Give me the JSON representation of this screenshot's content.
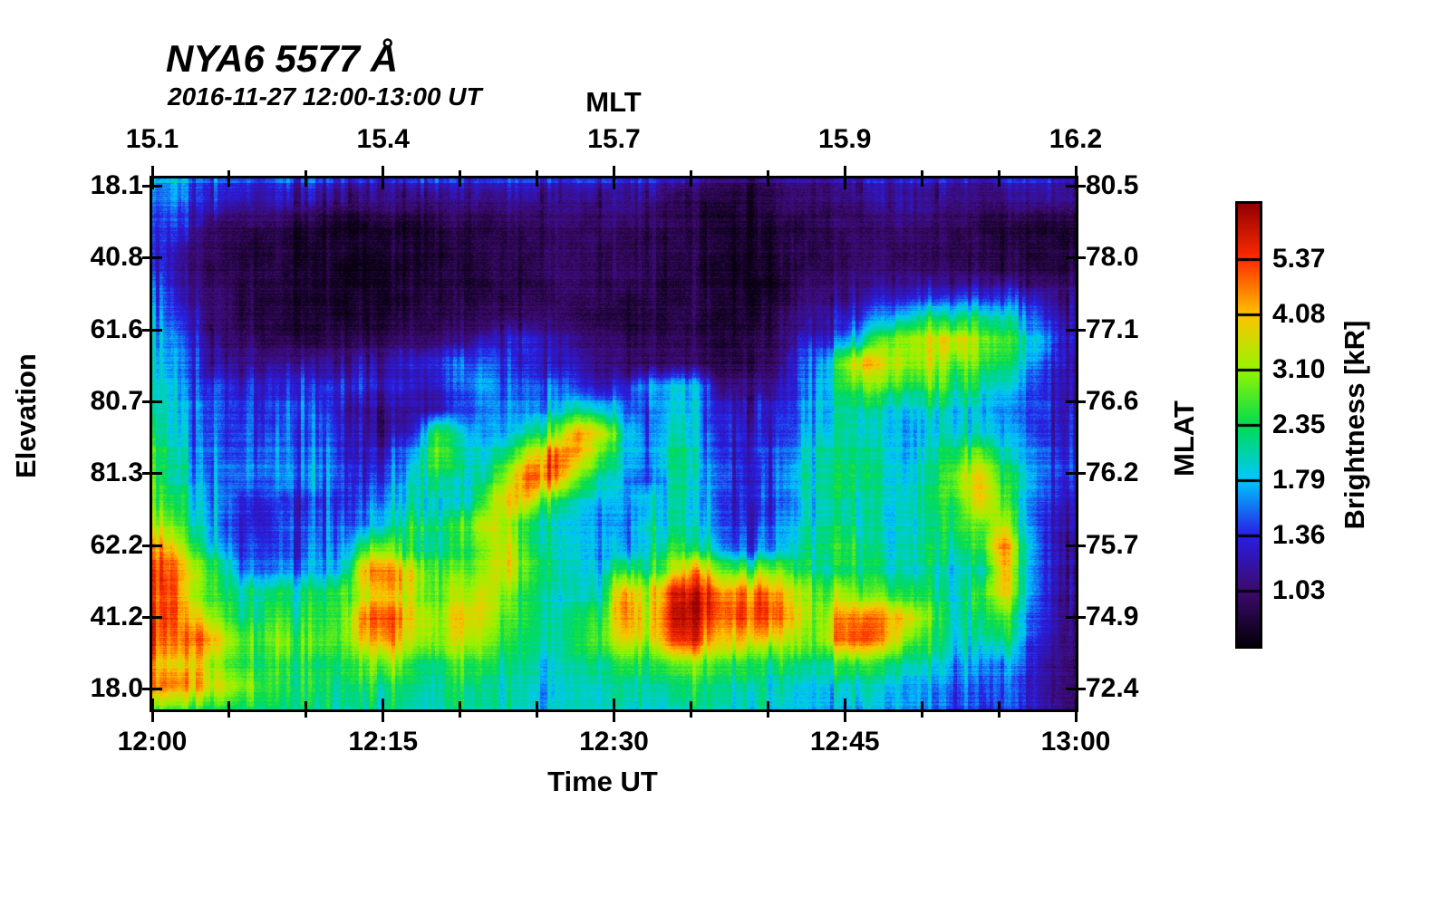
{
  "chart_data": {
    "type": "heatmap",
    "title": "NYA6 5577 Å",
    "subtitle": "2016-11-27 12:00-13:00 UT",
    "xlabel_bottom": "Time UT",
    "xlabel_top": "MLT",
    "ylabel_left": "Elevation",
    "ylabel_right": "MLAT",
    "colorbar_label": "Brightness [kR]",
    "x_ticks_bottom": [
      "12:00",
      "12:15",
      "12:30",
      "12:45",
      "13:00"
    ],
    "x_ticks_top": [
      "15.1",
      "15.4",
      "15.7",
      "15.9",
      "16.2"
    ],
    "y_ticks_left": [
      "18.1",
      "40.8",
      "61.6",
      "80.7",
      "81.3",
      "62.2",
      "41.2",
      "18.0"
    ],
    "y_ticks_right": [
      "80.5",
      "78.0",
      "77.1",
      "76.6",
      "76.2",
      "75.7",
      "74.9",
      "72.4"
    ],
    "colorbar_ticks": [
      "5.37",
      "4.08",
      "3.10",
      "2.35",
      "1.79",
      "1.36",
      "1.03"
    ],
    "scale": "log",
    "x_range_minutes": [
      0,
      60
    ],
    "grid_on": false,
    "colormap_stops": [
      [
        0,
        5,
        0,
        10
      ],
      [
        12.5,
        62,
        10,
        112
      ],
      [
        25,
        40,
        30,
        230
      ],
      [
        37.5,
        0,
        200,
        255
      ],
      [
        50,
        0,
        220,
        80
      ],
      [
        62.5,
        150,
        245,
        0
      ],
      [
        75,
        255,
        195,
        0
      ],
      [
        87.5,
        255,
        45,
        0
      ],
      [
        100,
        150,
        0,
        0
      ]
    ],
    "grid": {
      "cols": 40,
      "rows": 24,
      "comment_scale": "values are percent position on the log color scale: 0=darkest (~0.78 kR), 50=2.35 kR, 100=brightest (~7.1 kR)",
      "values_t100": [
        [
          30,
          32,
          28,
          26,
          25,
          24,
          24,
          25,
          24,
          22,
          22,
          23,
          24,
          22,
          22,
          23,
          22,
          21,
          22,
          23,
          22,
          20,
          18,
          16,
          10,
          9,
          10,
          13,
          14,
          15,
          17,
          20,
          22,
          18,
          17,
          15,
          20,
          22,
          20,
          18
        ],
        [
          30,
          28,
          24,
          21,
          19,
          18,
          17,
          17,
          16,
          15,
          14,
          13,
          13,
          14,
          14,
          14,
          15,
          15,
          15,
          16,
          15,
          14,
          10,
          8,
          7,
          6,
          8,
          11,
          13,
          14,
          14,
          16,
          18,
          15,
          13,
          12,
          14,
          16,
          15,
          14
        ],
        [
          26,
          22,
          15,
          12,
          10,
          9,
          7,
          5,
          4,
          4,
          5,
          5,
          6,
          7,
          8,
          9,
          10,
          11,
          12,
          12,
          11,
          10,
          10,
          9,
          5,
          4,
          4,
          6,
          9,
          11,
          12,
          13,
          13,
          12,
          10,
          9,
          8,
          7,
          6,
          6
        ],
        [
          22,
          16,
          10,
          8,
          6,
          5,
          4,
          3,
          3,
          4,
          4,
          4,
          5,
          6,
          7,
          8,
          9,
          10,
          9,
          8,
          8,
          8,
          8,
          7,
          4,
          3,
          3,
          5,
          8,
          10,
          11,
          11,
          10,
          10,
          9,
          8,
          7,
          6,
          5,
          5
        ],
        [
          24,
          18,
          12,
          9,
          7,
          6,
          4,
          4,
          3,
          4,
          5,
          5,
          6,
          7,
          8,
          9,
          10,
          11,
          11,
          10,
          10,
          9,
          9,
          8,
          4,
          3,
          4,
          6,
          9,
          12,
          13,
          14,
          13,
          12,
          12,
          11,
          10,
          9,
          8,
          8
        ],
        [
          28,
          22,
          14,
          10,
          8,
          6,
          5,
          4,
          4,
          5,
          5,
          6,
          6,
          7,
          8,
          9,
          10,
          11,
          10,
          9,
          8,
          8,
          8,
          8,
          5,
          4,
          4,
          8,
          12,
          16,
          18,
          20,
          22,
          24,
          26,
          24,
          26,
          24,
          18,
          14
        ],
        [
          32,
          26,
          16,
          12,
          9,
          7,
          6,
          5,
          5,
          6,
          7,
          8,
          9,
          10,
          11,
          12,
          12,
          12,
          10,
          9,
          8,
          8,
          8,
          8,
          6,
          5,
          6,
          10,
          16,
          22,
          28,
          35,
          42,
          48,
          50,
          48,
          44,
          36,
          24,
          18
        ],
        [
          36,
          30,
          20,
          13,
          10,
          8,
          7,
          7,
          8,
          9,
          10,
          11,
          12,
          14,
          18,
          22,
          24,
          18,
          14,
          11,
          10,
          10,
          10,
          9,
          6,
          6,
          8,
          14,
          22,
          32,
          46,
          60,
          65,
          68,
          75,
          62,
          56,
          46,
          30,
          22
        ],
        [
          40,
          32,
          22,
          16,
          14,
          15,
          16,
          17,
          18,
          19,
          20,
          22,
          24,
          28,
          30,
          26,
          24,
          20,
          18,
          14,
          12,
          12,
          12,
          10,
          8,
          8,
          10,
          18,
          30,
          55,
          80,
          70,
          62,
          65,
          60,
          55,
          50,
          40,
          26,
          20
        ],
        [
          42,
          34,
          26,
          24,
          22,
          22,
          22,
          24,
          26,
          24,
          22,
          20,
          22,
          28,
          34,
          30,
          28,
          32,
          26,
          20,
          25,
          35,
          40,
          35,
          15,
          12,
          14,
          20,
          35,
          50,
          60,
          55,
          50,
          55,
          50,
          45,
          40,
          32,
          22,
          18
        ],
        [
          45,
          36,
          28,
          24,
          26,
          24,
          26,
          28,
          22,
          18,
          16,
          16,
          18,
          24,
          30,
          34,
          30,
          38,
          45,
          40,
          30,
          28,
          40,
          35,
          22,
          18,
          20,
          25,
          35,
          45,
          45,
          40,
          38,
          42,
          40,
          38,
          35,
          30,
          24,
          20
        ],
        [
          48,
          38,
          30,
          26,
          28,
          26,
          28,
          30,
          24,
          20,
          18,
          20,
          55,
          40,
          35,
          38,
          45,
          60,
          80,
          70,
          40,
          30,
          45,
          38,
          25,
          20,
          22,
          28,
          38,
          48,
          42,
          38,
          35,
          40,
          45,
          42,
          38,
          32,
          26,
          22
        ],
        [
          50,
          40,
          32,
          28,
          30,
          28,
          30,
          32,
          26,
          22,
          24,
          35,
          60,
          45,
          40,
          50,
          70,
          85,
          75,
          55,
          38,
          32,
          50,
          40,
          28,
          22,
          25,
          32,
          42,
          50,
          45,
          40,
          38,
          45,
          55,
          60,
          45,
          35,
          28,
          24
        ],
        [
          52,
          42,
          34,
          30,
          32,
          30,
          32,
          34,
          28,
          24,
          28,
          40,
          50,
          42,
          45,
          65,
          88,
          80,
          60,
          45,
          35,
          30,
          48,
          42,
          30,
          24,
          28,
          35,
          45,
          52,
          48,
          42,
          40,
          50,
          65,
          75,
          55,
          38,
          30,
          26
        ],
        [
          55,
          48,
          40,
          30,
          26,
          24,
          26,
          28,
          26,
          30,
          35,
          45,
          40,
          38,
          55,
          75,
          70,
          50,
          40,
          38,
          35,
          40,
          45,
          40,
          28,
          22,
          24,
          30,
          40,
          48,
          45,
          42,
          45,
          50,
          55,
          75,
          60,
          35,
          26,
          22
        ],
        [
          65,
          55,
          42,
          30,
          26,
          25,
          27,
          30,
          28,
          35,
          42,
          50,
          45,
          55,
          70,
          65,
          48,
          40,
          38,
          36,
          34,
          42,
          48,
          42,
          28,
          22,
          25,
          32,
          42,
          50,
          46,
          40,
          42,
          48,
          55,
          60,
          70,
          35,
          24,
          20
        ],
        [
          80,
          70,
          50,
          34,
          28,
          26,
          28,
          32,
          35,
          55,
          60,
          50,
          45,
          50,
          60,
          70,
          50,
          42,
          40,
          38,
          36,
          45,
          55,
          50,
          35,
          25,
          28,
          36,
          48,
          55,
          50,
          42,
          45,
          52,
          50,
          55,
          85,
          40,
          24,
          18
        ],
        [
          90,
          80,
          62,
          45,
          32,
          30,
          32,
          36,
          40,
          80,
          85,
          65,
          55,
          58,
          62,
          72,
          55,
          45,
          42,
          40,
          55,
          50,
          70,
          80,
          60,
          55,
          60,
          50,
          45,
          50,
          48,
          45,
          42,
          45,
          40,
          45,
          78,
          38,
          22,
          16
        ],
        [
          85,
          78,
          60,
          50,
          45,
          48,
          45,
          50,
          55,
          70,
          75,
          65,
          55,
          65,
          70,
          60,
          48,
          42,
          40,
          45,
          80,
          65,
          92,
          95,
          80,
          80,
          82,
          65,
          55,
          65,
          60,
          55,
          50,
          48,
          42,
          55,
          75,
          38,
          20,
          14
        ],
        [
          88,
          80,
          70,
          55,
          48,
          52,
          48,
          52,
          58,
          85,
          88,
          70,
          60,
          75,
          72,
          58,
          50,
          45,
          48,
          55,
          85,
          70,
          95,
          97,
          85,
          88,
          85,
          70,
          60,
          80,
          85,
          80,
          70,
          55,
          45,
          50,
          60,
          35,
          20,
          14
        ],
        [
          85,
          78,
          85,
          70,
          55,
          60,
          55,
          58,
          60,
          80,
          82,
          65,
          58,
          70,
          65,
          55,
          48,
          45,
          50,
          58,
          75,
          65,
          88,
          90,
          75,
          75,
          72,
          62,
          58,
          85,
          88,
          75,
          60,
          50,
          42,
          45,
          50,
          32,
          18,
          13
        ],
        [
          75,
          70,
          72,
          60,
          50,
          52,
          48,
          50,
          52,
          60,
          62,
          52,
          48,
          55,
          52,
          48,
          44,
          42,
          45,
          48,
          55,
          52,
          60,
          62,
          55,
          52,
          50,
          48,
          45,
          55,
          58,
          50,
          45,
          40,
          35,
          36,
          38,
          28,
          16,
          12
        ],
        [
          80,
          78,
          75,
          68,
          60,
          52,
          48,
          50,
          48,
          52,
          50,
          46,
          44,
          48,
          46,
          44,
          42,
          40,
          42,
          44,
          46,
          44,
          48,
          50,
          46,
          44,
          42,
          40,
          38,
          42,
          44,
          40,
          36,
          33,
          30,
          30,
          32,
          26,
          16,
          12
        ],
        [
          55,
          52,
          50,
          48,
          46,
          45,
          44,
          45,
          44,
          46,
          45,
          43,
          42,
          44,
          43,
          42,
          40,
          39,
          40,
          41,
          42,
          41,
          43,
          44,
          42,
          40,
          39,
          38,
          36,
          38,
          39,
          36,
          33,
          30,
          28,
          27,
          28,
          24,
          15,
          11
        ]
      ]
    }
  }
}
